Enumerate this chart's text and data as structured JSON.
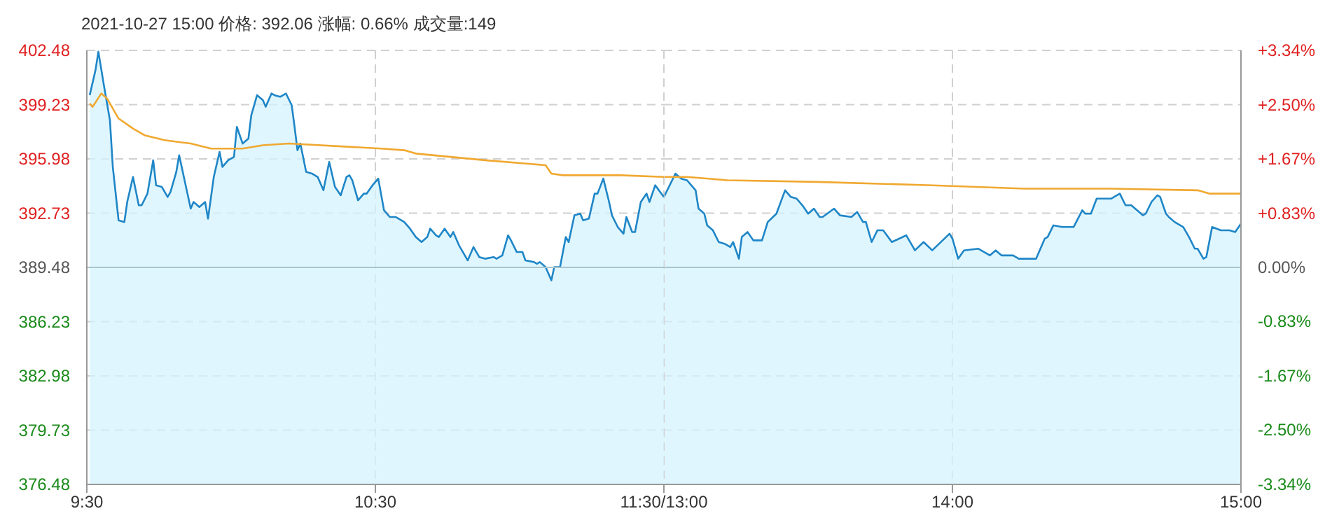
{
  "chart_data": [
    {
      "type": "area",
      "title": "2021-10-27 15:00  价格: 392.06  涨幅: 0.66%  成交量:149",
      "xlim": [
        9.5,
        11.5
      ],
      "xticks": [
        {
          "value": 9.5,
          "label": "9:30"
        },
        {
          "value": 10.5,
          "label": "10:30"
        },
        {
          "value": 11.5,
          "label": "11:30/13:00"
        }
      ],
      "ylim": [
        376.48,
        402.48
      ],
      "yticks": [
        376.48,
        379.73,
        382.98,
        386.23,
        389.48,
        392.73,
        395.98,
        399.23,
        402.48
      ],
      "grid": true,
      "legend": false,
      "marker": "none",
      "ref_lines": [
        {
          "axis": "y",
          "value": 389.48,
          "color": "#a9c4cc"
        }
      ],
      "series": [
        {
          "color": "#1f86c7",
          "x": [
            9.51,
            9.53,
            9.54,
            9.56,
            9.58,
            9.59,
            9.61,
            9.63,
            9.64,
            9.66,
            9.68,
            9.69,
            9.71,
            9.73,
            9.74,
            9.76,
            9.78,
            9.79,
            9.81,
            9.82,
            9.84,
            9.86,
            9.87,
            9.89,
            9.91,
            9.92,
            9.94,
            9.96,
            9.97,
            9.99,
            10.01,
            10.02,
            10.04,
            10.06,
            10.07,
            10.09,
            10.11,
            10.12,
            10.14,
            10.15,
            10.17,
            10.19,
            10.21,
            10.22,
            10.23,
            10.24,
            10.26,
            10.28,
            10.3,
            10.32,
            10.34,
            10.36,
            10.38,
            10.4,
            10.41,
            10.42,
            10.44,
            10.46,
            10.47,
            10.49,
            10.51,
            10.53,
            10.55,
            10.57,
            10.6,
            10.62,
            10.64,
            10.66,
            10.68,
            10.69,
            10.71,
            10.72,
            10.74,
            10.76,
            10.77,
            10.79,
            10.81,
            10.82,
            10.84,
            10.86,
            10.88,
            10.91,
            10.92,
            10.94,
            10.96,
            10.97,
            10.99,
            11.01,
            11.02,
            11.05,
            11.06,
            11.07,
            11.09,
            11.11,
            11.12,
            11.14,
            11.16,
            11.17,
            11.19,
            11.21,
            11.22,
            11.24,
            11.26,
            11.27,
            11.29,
            11.31,
            11.32,
            11.34,
            11.36,
            11.37,
            11.39,
            11.4,
            11.42,
            11.44,
            11.45,
            11.47,
            11.5
          ],
          "values": [
            399.8,
            401.3,
            402.4,
            400.3,
            398.3,
            395.5,
            392.3,
            392.2,
            393.4,
            394.9,
            393.2,
            393.2,
            393.9,
            395.9,
            394.4,
            394.3,
            393.7,
            394.0,
            395.2,
            396.2,
            394.6,
            393.0,
            393.4,
            393.1,
            393.4,
            392.4,
            394.9,
            396.4,
            395.5,
            395.9,
            396.1,
            397.9,
            396.9,
            397.2,
            398.6,
            399.8,
            399.5,
            399.1,
            399.9,
            399.8,
            399.7,
            399.9,
            399.2,
            397.9,
            396.5,
            396.9,
            395.2,
            395.1,
            394.9,
            394.1,
            395.8,
            394.3,
            393.8,
            394.9,
            395.0,
            394.7,
            393.5,
            393.9,
            393.9,
            394.4,
            394.8,
            392.9,
            392.5,
            392.5,
            392.2,
            391.8,
            391.3,
            391.0,
            391.3,
            391.8,
            391.4,
            391.3,
            391.8,
            391.3,
            391.6,
            390.8,
            390.2,
            389.9,
            390.7,
            390.1,
            390.0,
            390.1,
            390.0,
            390.2,
            391.4,
            391.1,
            390.4,
            390.4,
            389.9,
            389.8,
            389.7,
            389.8,
            389.5,
            388.7,
            389.5,
            389.5,
            391.3,
            391.0,
            392.6,
            392.7,
            392.3,
            392.4,
            393.9,
            393.9,
            394.8,
            393.4,
            392.6,
            391.9,
            391.5,
            392.5,
            391.6,
            391.6,
            393.4,
            393.9,
            393.4,
            394.4,
            393.7
          ]
        },
        {
          "type": "line",
          "color": "#f0a830",
          "x": [
            9.51,
            9.52,
            9.55,
            9.57,
            9.61,
            9.66,
            9.7,
            9.77,
            9.86,
            9.93,
            10.04,
            10.11,
            10.2,
            10.52,
            10.6,
            10.64,
            10.88,
            11.09,
            11.11,
            11.15,
            11.35,
            11.5
          ],
          "values": [
            399.3,
            399.1,
            399.9,
            399.6,
            398.4,
            397.8,
            397.4,
            397.1,
            396.9,
            396.6,
            396.6,
            396.8,
            396.9,
            396.6,
            396.5,
            396.3,
            395.9,
            395.6,
            395.1,
            395.0,
            395.0,
            394.9
          ]
        }
      ]
    },
    {
      "type": "area",
      "xlim": [
        13,
        15
      ],
      "xticks": [
        {
          "value": 13,
          "label": null
        },
        {
          "value": 14,
          "label": "14:00"
        },
        {
          "value": 15,
          "label": "15:00"
        }
      ],
      "ylim": [
        376.48,
        402.48
      ],
      "yticks": [
        376.48,
        379.73,
        382.98,
        386.23,
        389.48,
        392.73,
        395.98,
        399.23,
        402.48
      ],
      "y2lim": [
        -3.34,
        3.34
      ],
      "y2ticks": [
        {
          "value": -3.34,
          "label": "-3.34%"
        },
        {
          "value": -2.5,
          "label": "-2.50%"
        },
        {
          "value": -1.67,
          "label": "-1.67%"
        },
        {
          "value": -0.83,
          "label": "-0.83%"
        },
        {
          "value": 0,
          "label": "0.00%"
        },
        {
          "value": 0.83,
          "label": "+0.83%"
        },
        {
          "value": 1.67,
          "label": "+1.67%"
        },
        {
          "value": 2.5,
          "label": "+2.50%"
        },
        {
          "value": 3.34,
          "label": "+3.34%"
        }
      ],
      "tick_labels": "x",
      "grid": true,
      "legend": false,
      "marker": "none",
      "ref_lines": [
        {
          "axis": "y",
          "value": 389.48,
          "color": "#a9c4cc"
        }
      ],
      "series": [
        {
          "color": "#1f86c7",
          "x": [
            13,
            13.04,
            13.06,
            13.08,
            13.11,
            13.12,
            13.14,
            13.15,
            13.17,
            13.19,
            13.21,
            13.23,
            13.24,
            13.26,
            13.27,
            13.29,
            13.31,
            13.34,
            13.36,
            13.39,
            13.42,
            13.44,
            13.46,
            13.48,
            13.5,
            13.52,
            13.54,
            13.55,
            13.59,
            13.61,
            13.65,
            13.67,
            13.69,
            13.7,
            13.72,
            13.74,
            13.76,
            13.79,
            13.84,
            13.87,
            13.9,
            13.93,
            13.99,
            14.0,
            14.02,
            14.04,
            14.09,
            14.13,
            14.15,
            14.17,
            14.21,
            14.23,
            14.29,
            14.32,
            14.33,
            14.35,
            14.38,
            14.42,
            14.45,
            14.46,
            14.48,
            14.5,
            14.55,
            14.56,
            14.58,
            14.6,
            14.62,
            14.66,
            14.67,
            14.69,
            14.71,
            14.72,
            14.74,
            14.75,
            14.77,
            14.8,
            14.82,
            14.84,
            14.85,
            14.87,
            14.88,
            14.9,
            14.93,
            14.96,
            14.98,
            15
          ],
          "values": [
            393.7,
            395.1,
            394.8,
            394.7,
            394.1,
            393.0,
            392.7,
            392.0,
            391.7,
            391.0,
            390.9,
            390.7,
            391.0,
            390.0,
            391.3,
            391.6,
            391.1,
            391.1,
            392.2,
            392.7,
            394.1,
            393.7,
            393.6,
            393.2,
            392.7,
            393.0,
            392.5,
            392.5,
            393.0,
            392.6,
            392.5,
            392.8,
            392.2,
            392.2,
            391.0,
            391.7,
            391.7,
            391.0,
            391.4,
            390.5,
            391.0,
            390.5,
            391.5,
            391.2,
            390.0,
            390.5,
            390.6,
            390.2,
            390.5,
            390.2,
            390.2,
            390.0,
            390.0,
            391.2,
            391.3,
            392.0,
            391.9,
            391.9,
            392.9,
            392.7,
            392.7,
            393.6,
            393.6,
            393.7,
            393.9,
            393.2,
            393.2,
            392.6,
            392.7,
            393.4,
            393.8,
            393.7,
            392.7,
            392.5,
            392.2,
            391.9,
            391.3,
            390.6,
            390.6,
            390.0,
            390.1,
            391.9,
            391.7,
            391.7,
            391.6,
            392.1
          ]
        },
        {
          "type": "line",
          "color": "#f0a830",
          "x": [
            13,
            13.08,
            13.22,
            13.53,
            13.93,
            14.25,
            14.55,
            14.85,
            14.89,
            15
          ],
          "values": [
            394.9,
            394.9,
            394.7,
            394.6,
            394.4,
            394.2,
            394.2,
            394.1,
            393.9,
            393.9
          ]
        }
      ]
    }
  ]
}
